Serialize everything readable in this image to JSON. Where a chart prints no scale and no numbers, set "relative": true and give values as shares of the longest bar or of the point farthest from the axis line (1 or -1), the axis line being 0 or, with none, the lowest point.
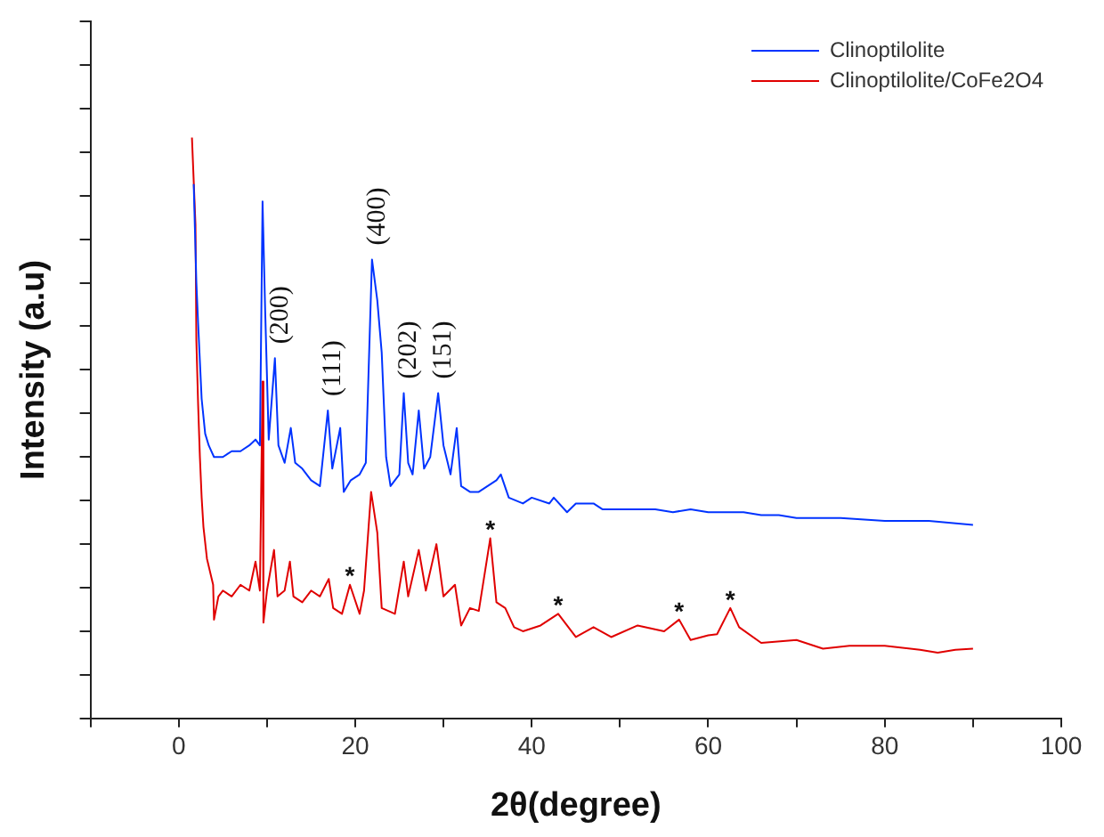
{
  "chart_data": {
    "type": "line",
    "xlabel": "2θ(degree)",
    "ylabel": "Intensity (a.u)",
    "relative": true,
    "xlim": [
      -10,
      100
    ],
    "xticks": [
      {
        "value": -10,
        "label": null
      },
      0,
      {
        "value": 10,
        "label": null
      },
      20,
      {
        "value": 30,
        "label": null
      },
      40,
      {
        "value": 50,
        "label": null
      },
      60,
      {
        "value": 70,
        "label": null
      },
      80,
      {
        "value": 90,
        "label": null
      },
      100
    ],
    "grid": false,
    "legend": "top right",
    "marker": "none",
    "line_style": "solid",
    "series": [
      {
        "name": "Clinoptilolite",
        "color": "#0033ff",
        "x": [
          1.7,
          2.0,
          2.2,
          2.6,
          3.0,
          3.4,
          4.0,
          5,
          6,
          7,
          8,
          8.7,
          9.2,
          9.5,
          9.8,
          10.2,
          10.9,
          11.3,
          12,
          12.7,
          13.2,
          14,
          15,
          16,
          16.9,
          17.4,
          18.3,
          18.7,
          19.5,
          20.5,
          21.2,
          21.9,
          22.5,
          23,
          23.5,
          24,
          25,
          25.5,
          26,
          26.5,
          27.2,
          27.8,
          28.5,
          29.4,
          30,
          30.8,
          31.5,
          32,
          33,
          34,
          35,
          36,
          36.5,
          37.4,
          39,
          40,
          42,
          42.5,
          44,
          45,
          47,
          48,
          50,
          52,
          54,
          56,
          58,
          60,
          62,
          64,
          66,
          68,
          70,
          75,
          80,
          85,
          90
        ],
        "values": [
          0.92,
          0.75,
          0.68,
          0.55,
          0.49,
          0.47,
          0.45,
          0.45,
          0.46,
          0.46,
          0.47,
          0.48,
          0.47,
          0.89,
          0.7,
          0.48,
          0.62,
          0.47,
          0.44,
          0.5,
          0.44,
          0.43,
          0.41,
          0.4,
          0.53,
          0.43,
          0.5,
          0.39,
          0.41,
          0.42,
          0.44,
          0.79,
          0.72,
          0.63,
          0.45,
          0.4,
          0.42,
          0.56,
          0.44,
          0.42,
          0.53,
          0.43,
          0.45,
          0.56,
          0.47,
          0.42,
          0.5,
          0.4,
          0.39,
          0.39,
          0.4,
          0.41,
          0.42,
          0.38,
          0.37,
          0.38,
          0.37,
          0.38,
          0.355,
          0.37,
          0.37,
          0.36,
          0.36,
          0.36,
          0.36,
          0.355,
          0.36,
          0.355,
          0.355,
          0.355,
          0.35,
          0.35,
          0.345,
          0.345,
          0.34,
          0.34,
          0.333
        ]
      },
      {
        "name": "Clinoptilolite/CoFe2O4",
        "color": "#e00000",
        "x": [
          1.5,
          1.9,
          2.0,
          2.2,
          2.4,
          2.6,
          2.8,
          3.2,
          3.9,
          4.0,
          4.5,
          5,
          6,
          7,
          8,
          8.7,
          9.2,
          9.5,
          9.6,
          10,
          10.8,
          11.2,
          12,
          12.6,
          13,
          14,
          15,
          16,
          17,
          17.5,
          18.5,
          19.4,
          20.5,
          21.0,
          21.8,
          22.5,
          23,
          24.5,
          25.5,
          26,
          27.2,
          28,
          29.2,
          30,
          31.3,
          32,
          33,
          34,
          35.3,
          36,
          37,
          38,
          39,
          41,
          43,
          45,
          47,
          49,
          52,
          55,
          56.7,
          58,
          60,
          61,
          62.5,
          63.5,
          66,
          70,
          73,
          76,
          80,
          84,
          86,
          88,
          90
        ],
        "values": [
          1.0,
          0.85,
          0.65,
          0.54,
          0.45,
          0.38,
          0.33,
          0.275,
          0.23,
          0.17,
          0.21,
          0.22,
          0.21,
          0.23,
          0.22,
          0.27,
          0.22,
          0.58,
          0.165,
          0.22,
          0.29,
          0.21,
          0.22,
          0.27,
          0.21,
          0.2,
          0.22,
          0.21,
          0.24,
          0.19,
          0.18,
          0.23,
          0.18,
          0.22,
          0.39,
          0.32,
          0.19,
          0.18,
          0.27,
          0.21,
          0.29,
          0.22,
          0.3,
          0.21,
          0.23,
          0.16,
          0.19,
          0.185,
          0.31,
          0.2,
          0.19,
          0.157,
          0.15,
          0.16,
          0.18,
          0.14,
          0.157,
          0.14,
          0.16,
          0.15,
          0.17,
          0.135,
          0.143,
          0.145,
          0.19,
          0.157,
          0.13,
          0.135,
          0.12,
          0.125,
          0.125,
          0.118,
          0.113,
          0.118,
          0.12
        ]
      }
    ],
    "annotations": [
      {
        "text": "(200)",
        "x": 10.9,
        "y": 0.62
      },
      {
        "text": "(111)",
        "x": 16.9,
        "y": 0.53
      },
      {
        "text": "(400)",
        "x": 21.9,
        "y": 0.79
      },
      {
        "text": "(202)",
        "x": 25.5,
        "y": 0.56
      },
      {
        "text": "(151)",
        "x": 29.4,
        "y": 0.56
      },
      {
        "text": "*",
        "x": 19.4,
        "y": 0.23
      },
      {
        "text": "*",
        "x": 35.3,
        "y": 0.31
      },
      {
        "text": "*",
        "x": 43,
        "y": 0.18
      },
      {
        "text": "*",
        "x": 56.7,
        "y": 0.17
      },
      {
        "text": "*",
        "x": 62.5,
        "y": 0.19
      }
    ]
  }
}
